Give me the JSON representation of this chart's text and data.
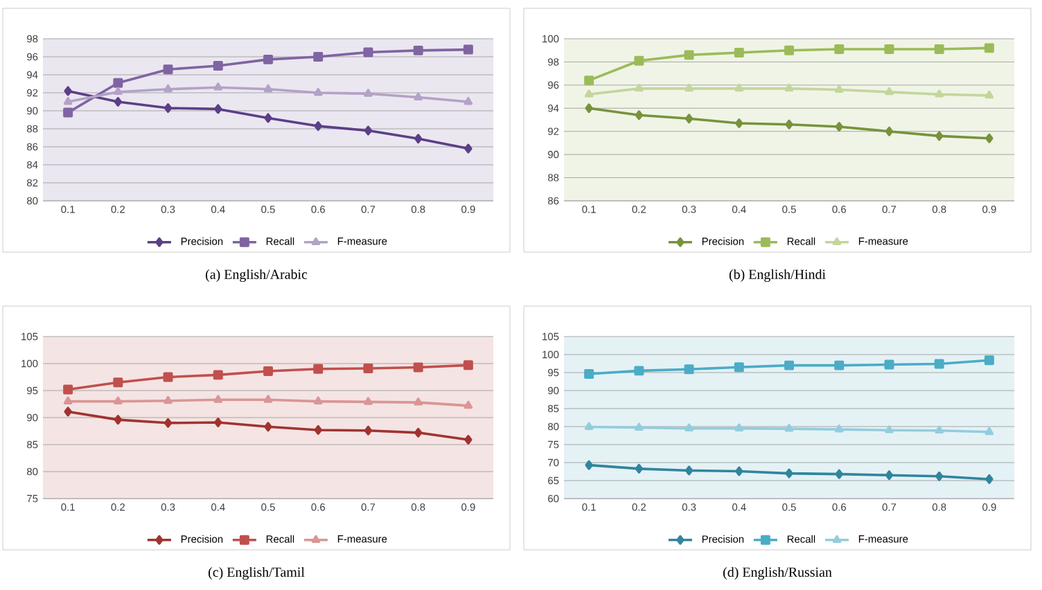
{
  "chart_data": [
    {
      "type": "line",
      "title": "(a)  English/Arabic",
      "categories": [
        "0.1",
        "0.2",
        "0.3",
        "0.4",
        "0.5",
        "0.6",
        "0.7",
        "0.8",
        "0.9"
      ],
      "ylim": [
        80,
        98
      ],
      "yticks": [
        80,
        82,
        84,
        86,
        88,
        90,
        92,
        94,
        96,
        98
      ],
      "grid": "y",
      "legend": "bottom",
      "series": [
        {
          "name": "Precision",
          "color": "#5b3f87",
          "marker": "diamond",
          "values": [
            92.2,
            91.0,
            90.3,
            90.2,
            89.2,
            88.3,
            87.8,
            86.9,
            85.8
          ]
        },
        {
          "name": "Recall",
          "color": "#8064a2",
          "marker": "square",
          "values": [
            89.8,
            93.1,
            94.6,
            95.0,
            95.7,
            96.0,
            96.5,
            96.7,
            96.8
          ]
        },
        {
          "name": "F-measure",
          "color": "#b3a2c7",
          "marker": "triangle",
          "values": [
            91.0,
            92.1,
            92.4,
            92.6,
            92.4,
            92.0,
            91.9,
            91.5,
            91.0
          ]
        }
      ]
    },
    {
      "type": "line",
      "title": "(b)  English/Hindi",
      "categories": [
        "0.1",
        "0.2",
        "0.3",
        "0.4",
        "0.5",
        "0.6",
        "0.7",
        "0.8",
        "0.9"
      ],
      "ylim": [
        86,
        100
      ],
      "yticks": [
        86,
        88,
        90,
        92,
        94,
        96,
        98,
        100
      ],
      "grid": "y",
      "legend": "bottom",
      "series": [
        {
          "name": "Precision",
          "color": "#77933c",
          "marker": "diamond",
          "values": [
            94.0,
            93.4,
            93.1,
            92.7,
            92.6,
            92.4,
            92.0,
            91.6,
            91.4
          ]
        },
        {
          "name": "Recall",
          "color": "#9bbb59",
          "marker": "square",
          "values": [
            96.4,
            98.1,
            98.6,
            98.8,
            99.0,
            99.1,
            99.1,
            99.1,
            99.2
          ]
        },
        {
          "name": "F-measure",
          "color": "#c3d69b",
          "marker": "triangle",
          "values": [
            95.2,
            95.7,
            95.7,
            95.7,
            95.7,
            95.6,
            95.4,
            95.2,
            95.1
          ]
        }
      ]
    },
    {
      "type": "line",
      "title": "(c)  English/Tamil",
      "categories": [
        "0.1",
        "0.2",
        "0.3",
        "0.4",
        "0.5",
        "0.6",
        "0.7",
        "0.8",
        "0.9"
      ],
      "ylim": [
        75,
        105
      ],
      "yticks": [
        75,
        80,
        85,
        90,
        95,
        100,
        105
      ],
      "grid": "y",
      "legend": "bottom",
      "series": [
        {
          "name": "Precision",
          "color": "#a0332f",
          "marker": "diamond",
          "values": [
            91.1,
            89.6,
            89.0,
            89.1,
            88.3,
            87.7,
            87.6,
            87.2,
            85.9
          ]
        },
        {
          "name": "Recall",
          "color": "#c0504d",
          "marker": "square",
          "values": [
            95.2,
            96.5,
            97.5,
            97.9,
            98.6,
            99.0,
            99.1,
            99.3,
            99.7
          ]
        },
        {
          "name": "F-measure",
          "color": "#d99694",
          "marker": "triangle",
          "values": [
            93.0,
            93.0,
            93.1,
            93.3,
            93.3,
            93.0,
            92.9,
            92.8,
            92.2
          ]
        }
      ]
    },
    {
      "type": "line",
      "title": "(d)  English/Russian",
      "categories": [
        "0.1",
        "0.2",
        "0.3",
        "0.4",
        "0.5",
        "0.6",
        "0.7",
        "0.8",
        "0.9"
      ],
      "ylim": [
        60,
        105
      ],
      "yticks": [
        60,
        65,
        70,
        75,
        80,
        85,
        90,
        95,
        100,
        105
      ],
      "grid": "y",
      "legend": "bottom",
      "series": [
        {
          "name": "Precision",
          "color": "#31859c",
          "marker": "diamond",
          "values": [
            69.3,
            68.3,
            67.8,
            67.6,
            67.0,
            66.8,
            66.5,
            66.2,
            65.4
          ]
        },
        {
          "name": "Recall",
          "color": "#4bacc6",
          "marker": "square",
          "values": [
            94.6,
            95.5,
            95.9,
            96.5,
            97.0,
            97.0,
            97.2,
            97.4,
            98.4
          ]
        },
        {
          "name": "F-measure",
          "color": "#93cddd",
          "marker": "triangle",
          "values": [
            79.9,
            79.7,
            79.5,
            79.5,
            79.4,
            79.2,
            79.0,
            78.9,
            78.5
          ]
        }
      ]
    }
  ]
}
